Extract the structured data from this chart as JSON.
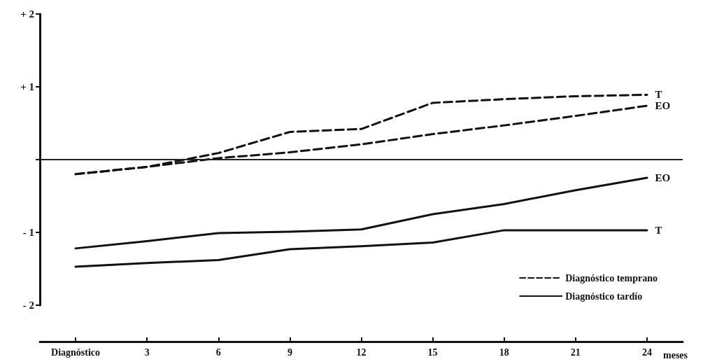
{
  "chart_data": {
    "type": "line",
    "xlabel": "meses",
    "categories": [
      "Diagnóstico",
      "3",
      "6",
      "9",
      "12",
      "15",
      "18",
      "21",
      "24"
    ],
    "series": [
      {
        "name": "Diagnóstico temprano",
        "color": "#111111",
        "line_style": "dashed",
        "values": [
          -0.2,
          -0.1,
          0.09,
          0.38,
          0.42,
          0.78,
          0.83,
          0.87,
          0.89
        ]
      },
      {
        "color": "#111111",
        "line_style": "dashed",
        "values": [
          -0.2,
          -0.1,
          0.02,
          0.1,
          0.21,
          0.35,
          0.47,
          0.6,
          0.74
        ]
      },
      {
        "name": "Diagnóstico tardío",
        "color": "#111111",
        "line_style": "solid",
        "values": [
          -1.22,
          -1.12,
          -1.01,
          -0.99,
          -0.96,
          -0.75,
          -0.61,
          -0.42,
          -0.25
        ]
      },
      {
        "color": "#111111",
        "line_style": "solid",
        "values": [
          -1.47,
          -1.42,
          -1.38,
          -1.23,
          -1.19,
          -1.14,
          -0.97,
          -0.97,
          -0.97
        ]
      }
    ],
    "ylim": [
      -2,
      2
    ],
    "yticks": [
      {
        "value": -2,
        "label": "- 2"
      },
      {
        "value": -1,
        "label": "- 1"
      },
      {
        "value": 0,
        "label": null
      },
      {
        "value": 1,
        "label": "+ 1"
      },
      {
        "value": 2,
        "label": "+ 2"
      }
    ],
    "ref_lines": [
      {
        "axis": "y",
        "value": 0,
        "label": null,
        "color": "#222222",
        "line_style": "solid"
      }
    ],
    "annotations": [
      {
        "text": "T",
        "x": "24",
        "y": 0.89
      },
      {
        "text": "EO",
        "x": "24",
        "y": 0.74
      },
      {
        "text": "EO",
        "x": "24",
        "y": -0.25
      },
      {
        "text": "T",
        "x": "24",
        "y": -0.97
      }
    ],
    "legend": "bottom right",
    "grid": false,
    "marker": "none"
  }
}
